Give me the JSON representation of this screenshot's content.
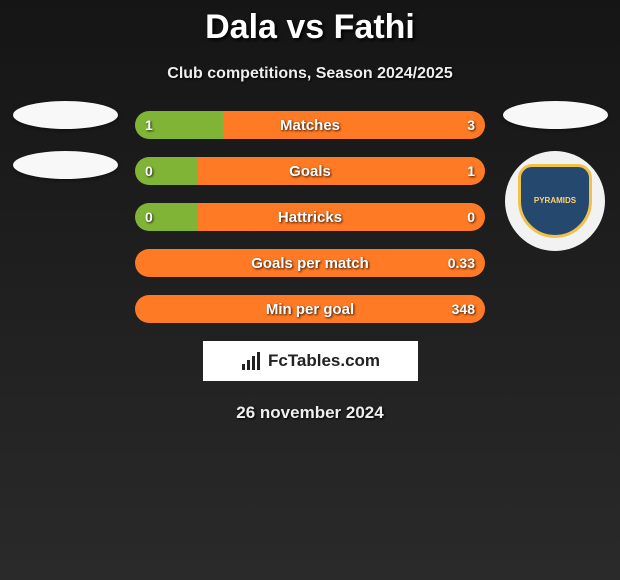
{
  "title": "Dala vs Fathi",
  "subtitle": "Club competitions, Season 2024/2025",
  "date": "26 november 2024",
  "brand": "FcTables.com",
  "colors": {
    "left": "#7fb436",
    "right": "#ff7a24",
    "badge_bg": "#25486f"
  },
  "rows": [
    {
      "label": "Matches",
      "left_val": "1",
      "right_val": "3",
      "left_pct": 25,
      "right_pct": 75
    },
    {
      "label": "Goals",
      "left_val": "0",
      "right_val": "1",
      "left_pct": 18,
      "right_pct": 82
    },
    {
      "label": "Hattricks",
      "left_val": "0",
      "right_val": "0",
      "left_pct": 18,
      "right_pct": 82
    },
    {
      "label": "Goals per match",
      "left_val": "",
      "right_val": "0.33",
      "left_pct": 0,
      "right_pct": 100
    },
    {
      "label": "Min per goal",
      "left_val": "",
      "right_val": "348",
      "left_pct": 0,
      "right_pct": 100
    }
  ]
}
